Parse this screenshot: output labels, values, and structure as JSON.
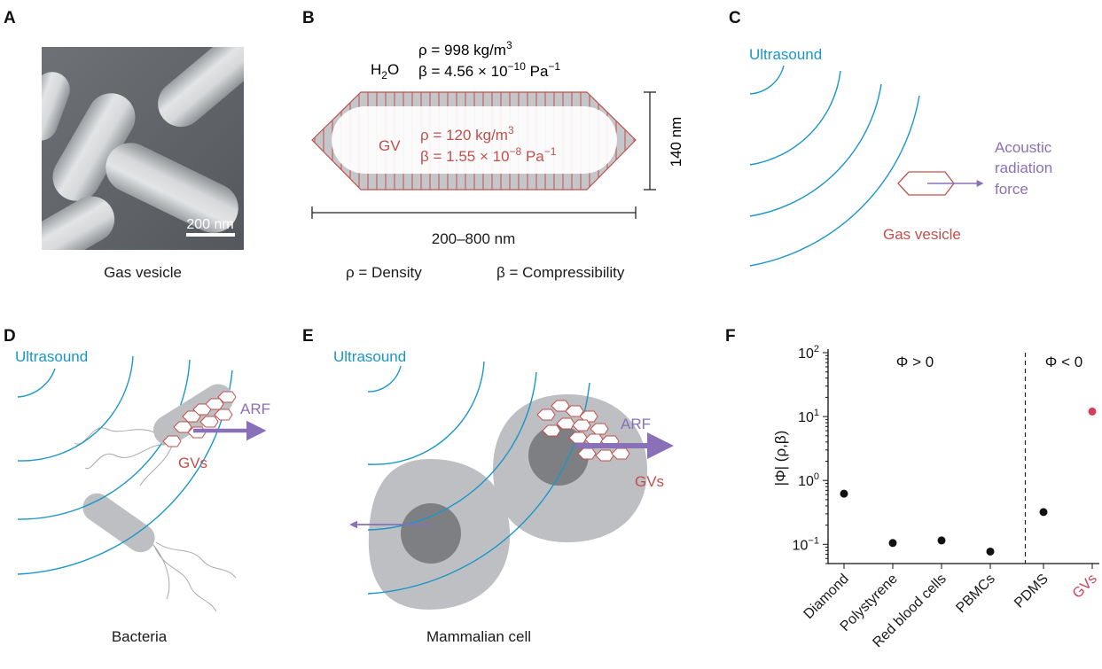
{
  "panels": {
    "A": {
      "letter": "A",
      "scale_bar": "200 nm",
      "caption": "Gas vesicle"
    },
    "B": {
      "letter": "B",
      "water_label": "H",
      "water_sub": "2",
      "water_label_end": "O",
      "water_density": "ρ = 998 kg/m",
      "water_density_sup": "3",
      "water_beta": "β = 4.56 × 10",
      "water_beta_sup": "−10",
      "water_beta_unit": " Pa",
      "water_beta_unit_sup": "−1",
      "gv_label": "GV",
      "gv_density": "ρ = 120 kg/m",
      "gv_density_sup": "3",
      "gv_beta": "β = 1.55 × 10",
      "gv_beta_sup": "−8",
      "gv_beta_unit": " Pa",
      "gv_beta_unit_sup": "−1",
      "width_label": "140 nm",
      "length_label": "200–800 nm",
      "legend_density": "ρ = Density",
      "legend_beta": "β = Compressibility"
    },
    "C": {
      "letter": "C",
      "ultrasound": "Ultrasound",
      "force_line1": "Acoustic",
      "force_line2": "radiation",
      "force_line3": "force",
      "gv_label": "Gas vesicle"
    },
    "D": {
      "letter": "D",
      "ultrasound": "Ultrasound",
      "arf": "ARF",
      "gvs": "GVs",
      "caption": "Bacteria"
    },
    "E": {
      "letter": "E",
      "ultrasound": "Ultrasound",
      "arf": "ARF",
      "gvs": "GVs",
      "caption": "Mammalian cell"
    }
  },
  "colors": {
    "ultrasound": "#1a96c8",
    "gv_red": "#c0504d",
    "arf_purple": "#8a70b8",
    "cell_gray": "#bdbfc2",
    "nucleus_gray": "#7d7f82",
    "point_black": "#111111",
    "point_gv": "#d0405a"
  },
  "chart_data": {
    "panel": "F",
    "type": "scatter",
    "ylabel": "|Φ| (ρ,β)",
    "yscale": "log",
    "ylim": [
      0.05,
      100
    ],
    "yticks": [
      {
        "value": 100,
        "base": "10",
        "exp": "2"
      },
      {
        "value": 10,
        "base": "10",
        "exp": "1"
      },
      {
        "value": 1,
        "base": "10",
        "exp": "0"
      },
      {
        "value": 0.1,
        "base": "10",
        "exp": "−1"
      }
    ],
    "categories": [
      "Diamond",
      "Polystyrene",
      "Red blood cells",
      "PBMCs",
      "PDMS",
      "GVs"
    ],
    "values": [
      0.62,
      0.105,
      0.115,
      0.077,
      0.32,
      12
    ],
    "point_colors": [
      "#111111",
      "#111111",
      "#111111",
      "#111111",
      "#111111",
      "#d0405a"
    ],
    "label_colors": [
      "#1a1a1a",
      "#1a1a1a",
      "#1a1a1a",
      "#1a1a1a",
      "#1a1a1a",
      "#d0405a"
    ],
    "regions": [
      {
        "label": "Φ > 0"
      },
      {
        "label": "Φ < 0"
      }
    ],
    "divider_after_index": 4
  }
}
